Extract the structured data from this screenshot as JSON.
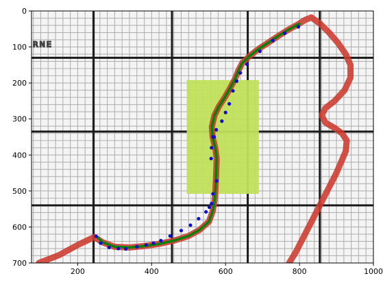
{
  "chart_data": {
    "type": "line",
    "xlim": [
      75,
      1000
    ],
    "ylim": [
      700,
      0
    ],
    "x_ticks": [
      200,
      400,
      600,
      800,
      1000
    ],
    "y_ticks": [
      0,
      100,
      200,
      300,
      400,
      500,
      600,
      700
    ],
    "background_image": {
      "description_text": "URNE",
      "major_grid_x": [
        243,
        455,
        660,
        855
      ],
      "major_grid_y": [
        130,
        335,
        540
      ],
      "minor_grid_spacing": 20
    },
    "highlight_rect": {
      "x": [
        495,
        690
      ],
      "y": [
        192,
        508
      ],
      "color": "#c0df5a"
    },
    "red_track": {
      "color": "#cc3a2f",
      "x": [
        95,
        150,
        200,
        245,
        268,
        300,
        340,
        380,
        420,
        460,
        500,
        530,
        555,
        565,
        570,
        572,
        574,
        576,
        572,
        565,
        563,
        570,
        582,
        598,
        612,
        625,
        635,
        645,
        665,
        690,
        720,
        745,
        770,
        795,
        815,
        832,
        855,
        880,
        905,
        925,
        938,
        938,
        922,
        895,
        870,
        860,
        870,
        895,
        915,
        928,
        925,
        900,
        870,
        840,
        810,
        790,
        772
      ],
      "y": [
        700,
        678,
        650,
        628,
        643,
        655,
        657,
        653,
        647,
        638,
        625,
        608,
        585,
        557,
        530,
        508,
        470,
        410,
        380,
        350,
        322,
        290,
        265,
        240,
        215,
        190,
        165,
        145,
        125,
        105,
        85,
        68,
        52,
        38,
        25,
        18,
        35,
        60,
        90,
        120,
        150,
        185,
        220,
        250,
        270,
        290,
        310,
        325,
        340,
        360,
        390,
        450,
        510,
        570,
        630,
        670,
        700
      ]
    },
    "green_path": {
      "color": "#0a7f0a",
      "x": [
        250,
        268,
        300,
        340,
        380,
        420,
        460,
        500,
        530,
        555,
        565,
        570,
        572,
        574,
        576,
        572,
        565,
        563,
        570,
        582,
        598,
        612,
        625,
        635,
        645,
        665,
        690,
        720,
        745,
        770,
        795,
        800
      ],
      "y": [
        625,
        643,
        655,
        657,
        653,
        647,
        638,
        625,
        608,
        585,
        557,
        530,
        508,
        470,
        410,
        380,
        350,
        322,
        290,
        265,
        240,
        215,
        190,
        165,
        145,
        125,
        105,
        85,
        68,
        52,
        38,
        36
      ]
    },
    "blue_points": {
      "color": "#1010cc",
      "x": [
        250,
        262,
        285,
        310,
        330,
        360,
        385,
        405,
        425,
        450,
        480,
        505,
        527,
        547,
        556,
        562,
        566,
        576,
        569,
        562,
        561,
        566,
        575,
        590,
        600,
        610,
        620,
        630,
        640,
        658,
        693,
        728,
        760,
        797
      ],
      "y": [
        626,
        645,
        657,
        660,
        661,
        655,
        650,
        645,
        638,
        625,
        610,
        595,
        577,
        558,
        545,
        535,
        508,
        472,
        350,
        380,
        410,
        350,
        330,
        306,
        282,
        258,
        222,
        195,
        172,
        148,
        112,
        82,
        62,
        44
      ]
    }
  }
}
